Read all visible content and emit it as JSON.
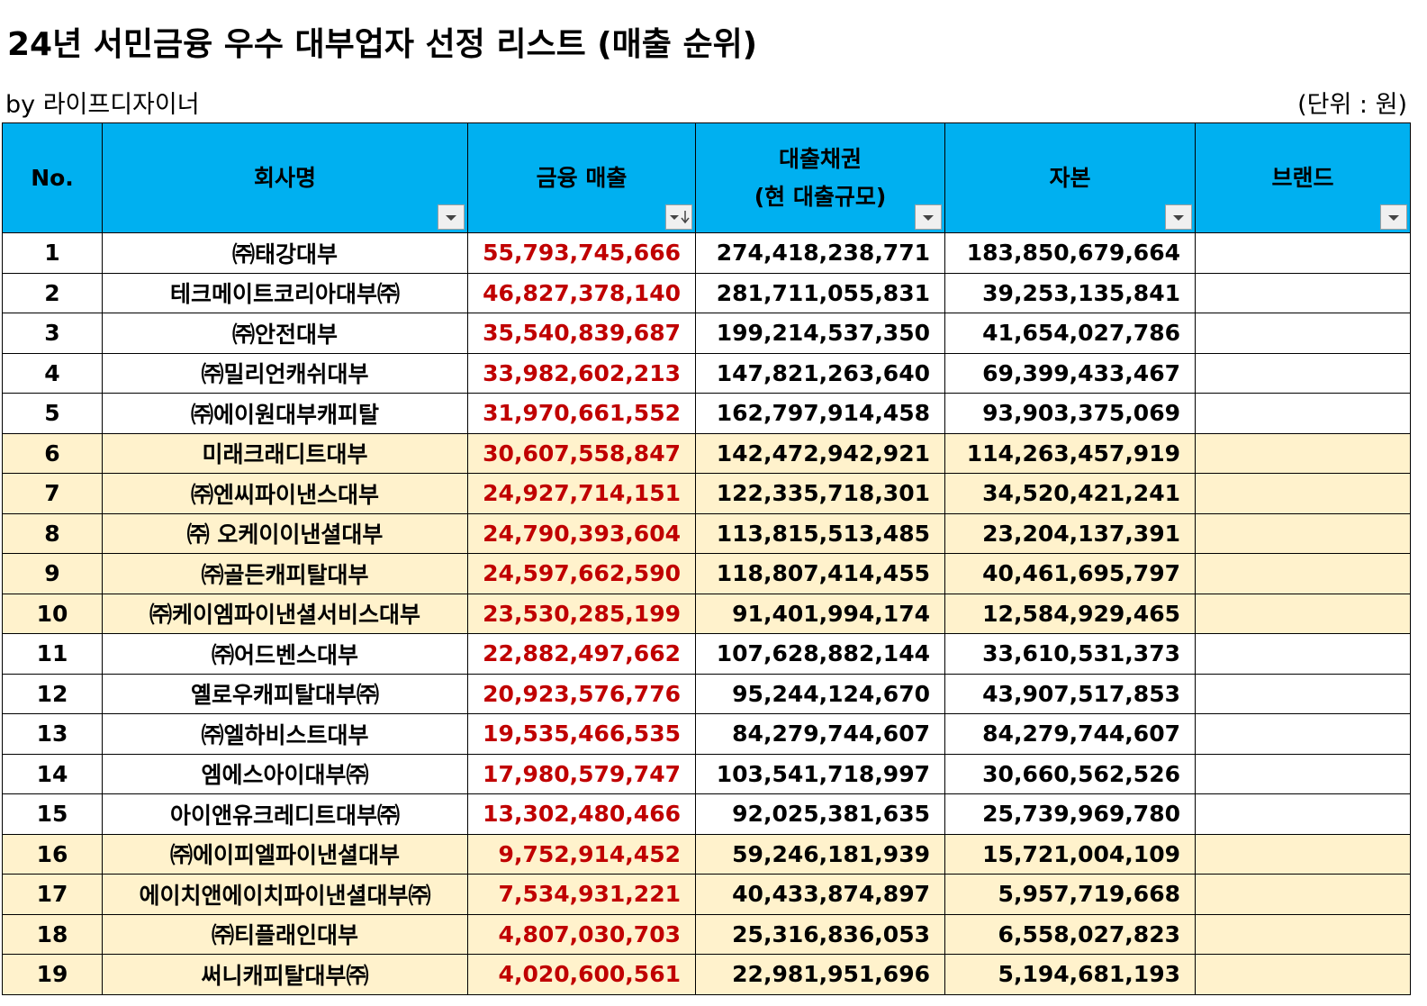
{
  "header": {
    "title": "24년 서민금융 우수 대부업자 선정 리스트 (매출 순위)",
    "byline": "by 라이프디자이너",
    "unit": "(단위 : 원)"
  },
  "table": {
    "columns": [
      "No.",
      "회사명",
      "금융 매출",
      "대출채권\n(현 대출규모)",
      "자본",
      "브랜드"
    ],
    "rows": [
      [
        "1",
        "㈜태강대부",
        "55,793,745,666",
        "274,418,238,771",
        "183,850,679,664"
      ],
      [
        "2",
        "테크메이트코리아대부㈜",
        "46,827,378,140",
        "281,711,055,831",
        "39,253,135,841"
      ],
      [
        "3",
        "㈜안전대부",
        "35,540,839,687",
        "199,214,537,350",
        "41,654,027,786"
      ],
      [
        "4",
        "㈜밀리언캐쉬대부",
        "33,982,602,213",
        "147,821,263,640",
        "69,399,433,467"
      ],
      [
        "5",
        "㈜에이원대부캐피탈",
        "31,970,661,552",
        "162,797,914,458",
        "93,903,375,069"
      ],
      [
        "6",
        "미래크래디트대부",
        "30,607,558,847",
        "142,472,942,921",
        "114,263,457,919"
      ],
      [
        "7",
        "㈜엔씨파이낸스대부",
        "24,927,714,151",
        "122,335,718,301",
        "34,520,421,241"
      ],
      [
        "8",
        "㈜ 오케이이낸셜대부",
        "24,790,393,604",
        "113,815,513,485",
        "23,204,137,391"
      ],
      [
        "9",
        "㈜골든캐피탈대부",
        "24,597,662,590",
        "118,807,414,455",
        "40,461,695,797"
      ],
      [
        "10",
        "㈜케이엠파이낸셜서비스대부",
        "23,530,285,199",
        "91,401,994,174",
        "12,584,929,465"
      ],
      [
        "11",
        "㈜어드벤스대부",
        "22,882,497,662",
        "107,628,882,144",
        "33,610,531,373"
      ],
      [
        "12",
        "옐로우캐피탈대부㈜",
        "20,923,576,776",
        "95,244,124,670",
        "43,907,517,853"
      ],
      [
        "13",
        "㈜엘하비스트대부",
        "19,535,466,535",
        "84,279,744,607",
        "84,279,744,607"
      ],
      [
        "14",
        "엠에스아이대부㈜",
        "17,980,579,747",
        "103,541,718,997",
        "30,660,562,526"
      ],
      [
        "15",
        "아이앤유크레디트대부㈜",
        "13,302,480,466",
        "92,025,381,635",
        "25,739,969,780"
      ],
      [
        "16",
        "㈜에이피엘파이낸셜대부",
        "9,752,914,452",
        "59,246,181,939",
        "15,721,004,109"
      ],
      [
        "17",
        "에이치앤에이치파이낸셜대부㈜",
        "7,534,931,221",
        "40,433,874,897",
        "5,957,719,668"
      ],
      [
        "18",
        "㈜티플래인대부",
        "4,807,030,703",
        "25,316,836,053",
        "6,558,027,823"
      ],
      [
        "19",
        "써니캐피탈대부㈜",
        "4,020,600,561",
        "22,981,951,696",
        "5,194,681,193"
      ]
    ]
  }
}
